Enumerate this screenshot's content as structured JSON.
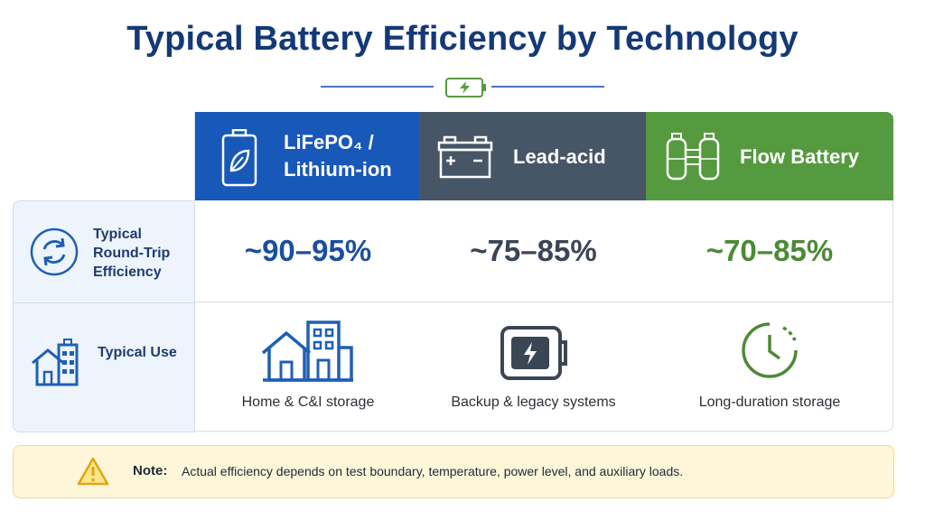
{
  "title": "Typical Battery Efficiency by Technology",
  "row_labels": {
    "efficiency": "Typical Round-Trip Efficiency",
    "use": "Typical Use"
  },
  "columns": [
    {
      "name_line1": "LiFePO₄ /",
      "name_line2": "Lithium-ion",
      "efficiency": "~90–95%",
      "use": "Home & C&I storage",
      "header_color": "#1858b8",
      "icon": "battery-leaf-icon",
      "use_icon": "home-and-building-icon"
    },
    {
      "name_line1": "Lead-acid",
      "efficiency": "~75–85%",
      "use": "Backup & legacy systems",
      "header_color": "#465666",
      "icon": "car-battery-icon",
      "use_icon": "backup-generator-icon"
    },
    {
      "name_line1": "Flow Battery",
      "efficiency": "~70–85%",
      "use": "Long-duration storage",
      "header_color": "#569a3f",
      "icon": "flow-battery-tanks-icon",
      "use_icon": "clock-icon"
    }
  ],
  "note": {
    "label": "Note:",
    "text": "Actual efficiency depends on test boundary, temperature, power level, and auxiliary loads."
  },
  "colors": {
    "title": "#143978",
    "lithium": "#1858b8",
    "lead_acid": "#465666",
    "flow": "#569a3f",
    "note_bg": "#fdf6d9"
  }
}
